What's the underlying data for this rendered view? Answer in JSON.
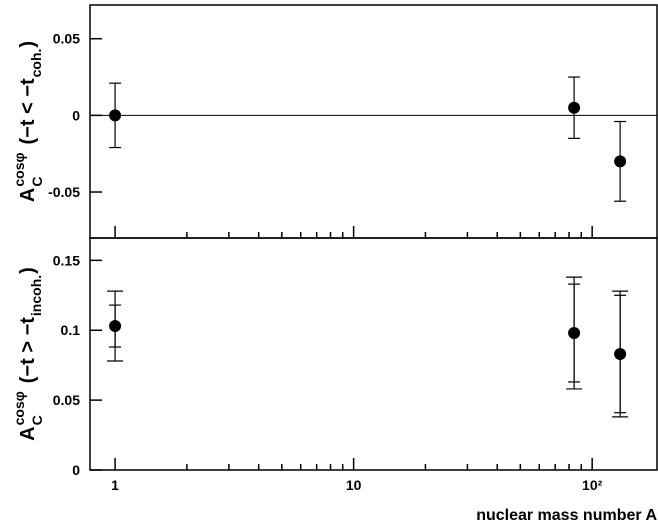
{
  "chart_data": [
    {
      "type": "scatter",
      "xscale": "log",
      "ylabel": {
        "symbol": "A",
        "subscript": "C",
        "superscript": "cosφ",
        "condition": "(−t < −t",
        "condition_subscript": "coh.",
        "close": ")"
      },
      "x": [
        1,
        84,
        131
      ],
      "values": [
        0.0,
        0.005,
        -0.03
      ],
      "errors": [
        0.021,
        0.02,
        0.026
      ],
      "color": "#000000",
      "xlim": [
        0.785,
        187
      ],
      "xticks": [
        1,
        10,
        {
          "value": 100,
          "label": "10²"
        }
      ],
      "xticks_minor": [
        2,
        3,
        4,
        5,
        6,
        7,
        8,
        9,
        20,
        30,
        40,
        50,
        60,
        70,
        80,
        90
      ],
      "ylim": [
        -0.08,
        0.072
      ],
      "yticks": [
        -0.05,
        0,
        0.05
      ],
      "reference_line": 0
    },
    {
      "type": "scatter",
      "xscale": "log",
      "ylabel": {
        "symbol": "A",
        "subscript": "C",
        "superscript": "cosφ",
        "condition": "(−t > −t",
        "condition_subscript": "incoh.",
        "close": ")"
      },
      "xlabel": "nuclear mass number A",
      "x": [
        1,
        84,
        131
      ],
      "values": [
        0.103,
        0.098,
        0.083
      ],
      "stat_errors": [
        0.015,
        0.035,
        0.042
      ],
      "total_errors": [
        0.025,
        0.04,
        0.045
      ],
      "color": "#000000",
      "xlim": [
        0.785,
        187
      ],
      "xticks": [
        1,
        10,
        {
          "value": 100,
          "label": "10²"
        }
      ],
      "xticks_minor": [
        2,
        3,
        4,
        5,
        6,
        7,
        8,
        9,
        20,
        30,
        40,
        50,
        60,
        70,
        80,
        90
      ],
      "ylim": [
        0,
        0.166
      ],
      "yticks": [
        0,
        0.05,
        0.1,
        0.15
      ]
    }
  ]
}
